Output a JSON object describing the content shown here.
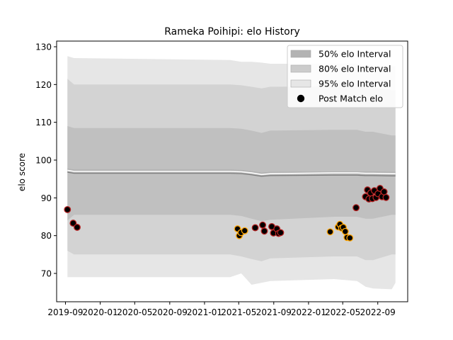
{
  "chart_data": {
    "type": "line",
    "title": "Rameka Poihipi: elo History",
    "xlabel": "",
    "ylabel": "elo score",
    "ylim": [
      62.5,
      131.5
    ],
    "xlim": [
      "2019-08-01",
      "2022-12-15"
    ],
    "y_ticks": [
      70,
      80,
      90,
      100,
      110,
      120,
      130
    ],
    "x_ticks": [
      {
        "date": "2019-09-01",
        "label": "2019-09"
      },
      {
        "date": "2020-01-01",
        "label": "2020-01"
      },
      {
        "date": "2020-05-01",
        "label": "2020-05"
      },
      {
        "date": "2020-09-01",
        "label": "2020-09"
      },
      {
        "date": "2021-01-01",
        "label": "2021-01"
      },
      {
        "date": "2021-05-01",
        "label": "2021-05"
      },
      {
        "date": "2021-09-01",
        "label": "2021-09"
      },
      {
        "date": "2022-01-01",
        "label": "2022-01"
      },
      {
        "date": "2022-05-01",
        "label": "2022-05"
      },
      {
        "date": "2022-09-01",
        "label": "2022-09"
      }
    ],
    "legend": {
      "placement": "top-right",
      "entries": [
        {
          "label": "50% elo Interval",
          "color": "#b3b3b3"
        },
        {
          "label": "80% elo Interval",
          "color": "#cccccc"
        },
        {
          "label": "95% elo Interval",
          "color": "#e6e6e6"
        },
        {
          "label": "Post Match elo",
          "color": "#000000"
        }
      ]
    },
    "bands": {
      "dates": [
        "2019-09-08",
        "2019-10-01",
        "2021-04-01",
        "2021-05-10",
        "2021-06-15",
        "2021-07-20",
        "2021-08-20",
        "2022-04-01",
        "2022-06-20",
        "2022-07-20",
        "2022-08-15",
        "2022-10-20",
        "2022-11-02"
      ],
      "mean": [
        97.3,
        97.0,
        97.0,
        96.9,
        96.6,
        96.2,
        96.4,
        96.6,
        96.6,
        96.5,
        96.5,
        96.4,
        96.4
      ],
      "p50_lower": [
        96.8,
        96.5,
        96.5,
        96.4,
        96.1,
        95.7,
        95.9,
        96.0,
        96.0,
        95.9,
        95.9,
        95.8,
        95.8
      ],
      "p50_upper": [
        97.8,
        97.5,
        97.5,
        97.4,
        97.1,
        96.7,
        96.9,
        97.0,
        97.0,
        97.0,
        97.0,
        96.9,
        96.9
      ],
      "p80_lower": [
        84.0,
        85.5,
        85.5,
        85.2,
        84.5,
        83.8,
        84.2,
        85.0,
        85.0,
        84.5,
        84.5,
        85.5,
        85.5
      ],
      "p80_upper": [
        109.0,
        108.5,
        108.5,
        108.3,
        107.8,
        107.2,
        107.8,
        108.0,
        108.0,
        107.5,
        107.5,
        106.5,
        106.5
      ],
      "p90_lower": [
        76.0,
        75.0,
        75.0,
        74.5,
        73.8,
        73.2,
        74.0,
        74.5,
        74.5,
        73.5,
        73.5,
        75.0,
        75.0
      ],
      "p90_upper": [
        121.5,
        120.0,
        120.0,
        119.8,
        119.4,
        119.0,
        119.4,
        119.5,
        119.5,
        119.2,
        119.2,
        118.5,
        118.5
      ],
      "p95_lower": [
        69.0,
        69.0,
        69.0,
        70.0,
        67.0,
        67.5,
        68.0,
        68.5,
        68.0,
        66.5,
        66.0,
        65.8,
        67.5
      ],
      "p95_upper": [
        127.5,
        127.0,
        126.5,
        126.0,
        126.0,
        125.8,
        125.5,
        125.5,
        125.5,
        125.0,
        125.0,
        124.8,
        124.8
      ]
    },
    "series": [
      {
        "marker": "circle",
        "points": [
          {
            "date": "2019-09-08",
            "elo": 86.9,
            "edge": "#b22222"
          },
          {
            "date": "2019-09-28",
            "elo": 83.3,
            "edge": "#b22222"
          },
          {
            "date": "2019-10-12",
            "elo": 82.2,
            "edge": "#b22222"
          },
          {
            "date": "2021-04-27",
            "elo": 81.8,
            "edge": "#ffa500"
          },
          {
            "date": "2021-05-03",
            "elo": 80.0,
            "edge": "#ffa500"
          },
          {
            "date": "2021-05-09",
            "elo": 80.8,
            "edge": "#ffa500"
          },
          {
            "date": "2021-05-22",
            "elo": 81.3,
            "edge": "#ffa500"
          },
          {
            "date": "2021-06-28",
            "elo": 82.1,
            "edge": "#b22222"
          },
          {
            "date": "2021-07-24",
            "elo": 82.8,
            "edge": "#b22222"
          },
          {
            "date": "2021-07-30",
            "elo": 81.2,
            "edge": "#b22222"
          },
          {
            "date": "2021-08-25",
            "elo": 82.4,
            "edge": "#b22222"
          },
          {
            "date": "2021-08-31",
            "elo": 80.7,
            "edge": "#b22222"
          },
          {
            "date": "2021-09-12",
            "elo": 81.8,
            "edge": "#b22222"
          },
          {
            "date": "2021-09-18",
            "elo": 80.6,
            "edge": "#b22222"
          },
          {
            "date": "2021-09-25",
            "elo": 80.8,
            "edge": "#b22222"
          },
          {
            "date": "2022-03-18",
            "elo": 81.0,
            "edge": "#ffa500"
          },
          {
            "date": "2022-04-15",
            "elo": 82.3,
            "edge": "#ffa500"
          },
          {
            "date": "2022-04-21",
            "elo": 83.0,
            "edge": "#ffa500"
          },
          {
            "date": "2022-04-27",
            "elo": 82.0,
            "edge": "#ffa500"
          },
          {
            "date": "2022-05-03",
            "elo": 82.2,
            "edge": "#ffa500"
          },
          {
            "date": "2022-05-10",
            "elo": 81.1,
            "edge": "#ffa500"
          },
          {
            "date": "2022-05-16",
            "elo": 79.5,
            "edge": "#ffa500"
          },
          {
            "date": "2022-05-26",
            "elo": 79.4,
            "edge": "#ffa500"
          },
          {
            "date": "2022-06-17",
            "elo": 87.4,
            "edge": "#b22222"
          },
          {
            "date": "2022-07-20",
            "elo": 90.3,
            "edge": "#b22222"
          },
          {
            "date": "2022-07-27",
            "elo": 92.1,
            "edge": "#b22222"
          },
          {
            "date": "2022-08-01",
            "elo": 89.7,
            "edge": "#b22222"
          },
          {
            "date": "2022-08-07",
            "elo": 91.3,
            "edge": "#b22222"
          },
          {
            "date": "2022-08-13",
            "elo": 89.8,
            "edge": "#b22222"
          },
          {
            "date": "2022-08-20",
            "elo": 91.9,
            "edge": "#b22222"
          },
          {
            "date": "2022-08-26",
            "elo": 90.1,
            "edge": "#b22222"
          },
          {
            "date": "2022-09-02",
            "elo": 91.1,
            "edge": "#b22222"
          },
          {
            "date": "2022-09-09",
            "elo": 92.5,
            "edge": "#b22222"
          },
          {
            "date": "2022-09-16",
            "elo": 90.3,
            "edge": "#b22222"
          },
          {
            "date": "2022-09-23",
            "elo": 91.6,
            "edge": "#b22222"
          },
          {
            "date": "2022-09-30",
            "elo": 90.1,
            "edge": "#b22222"
          }
        ]
      }
    ],
    "colors": {
      "band95": "#e6e6e6",
      "band90": "#d3d3d3",
      "band80": "#c0c0c0",
      "band50": "#b3b3b3",
      "mean_line": "#ffffff",
      "marker_fill": "#000000"
    },
    "grid": false
  }
}
